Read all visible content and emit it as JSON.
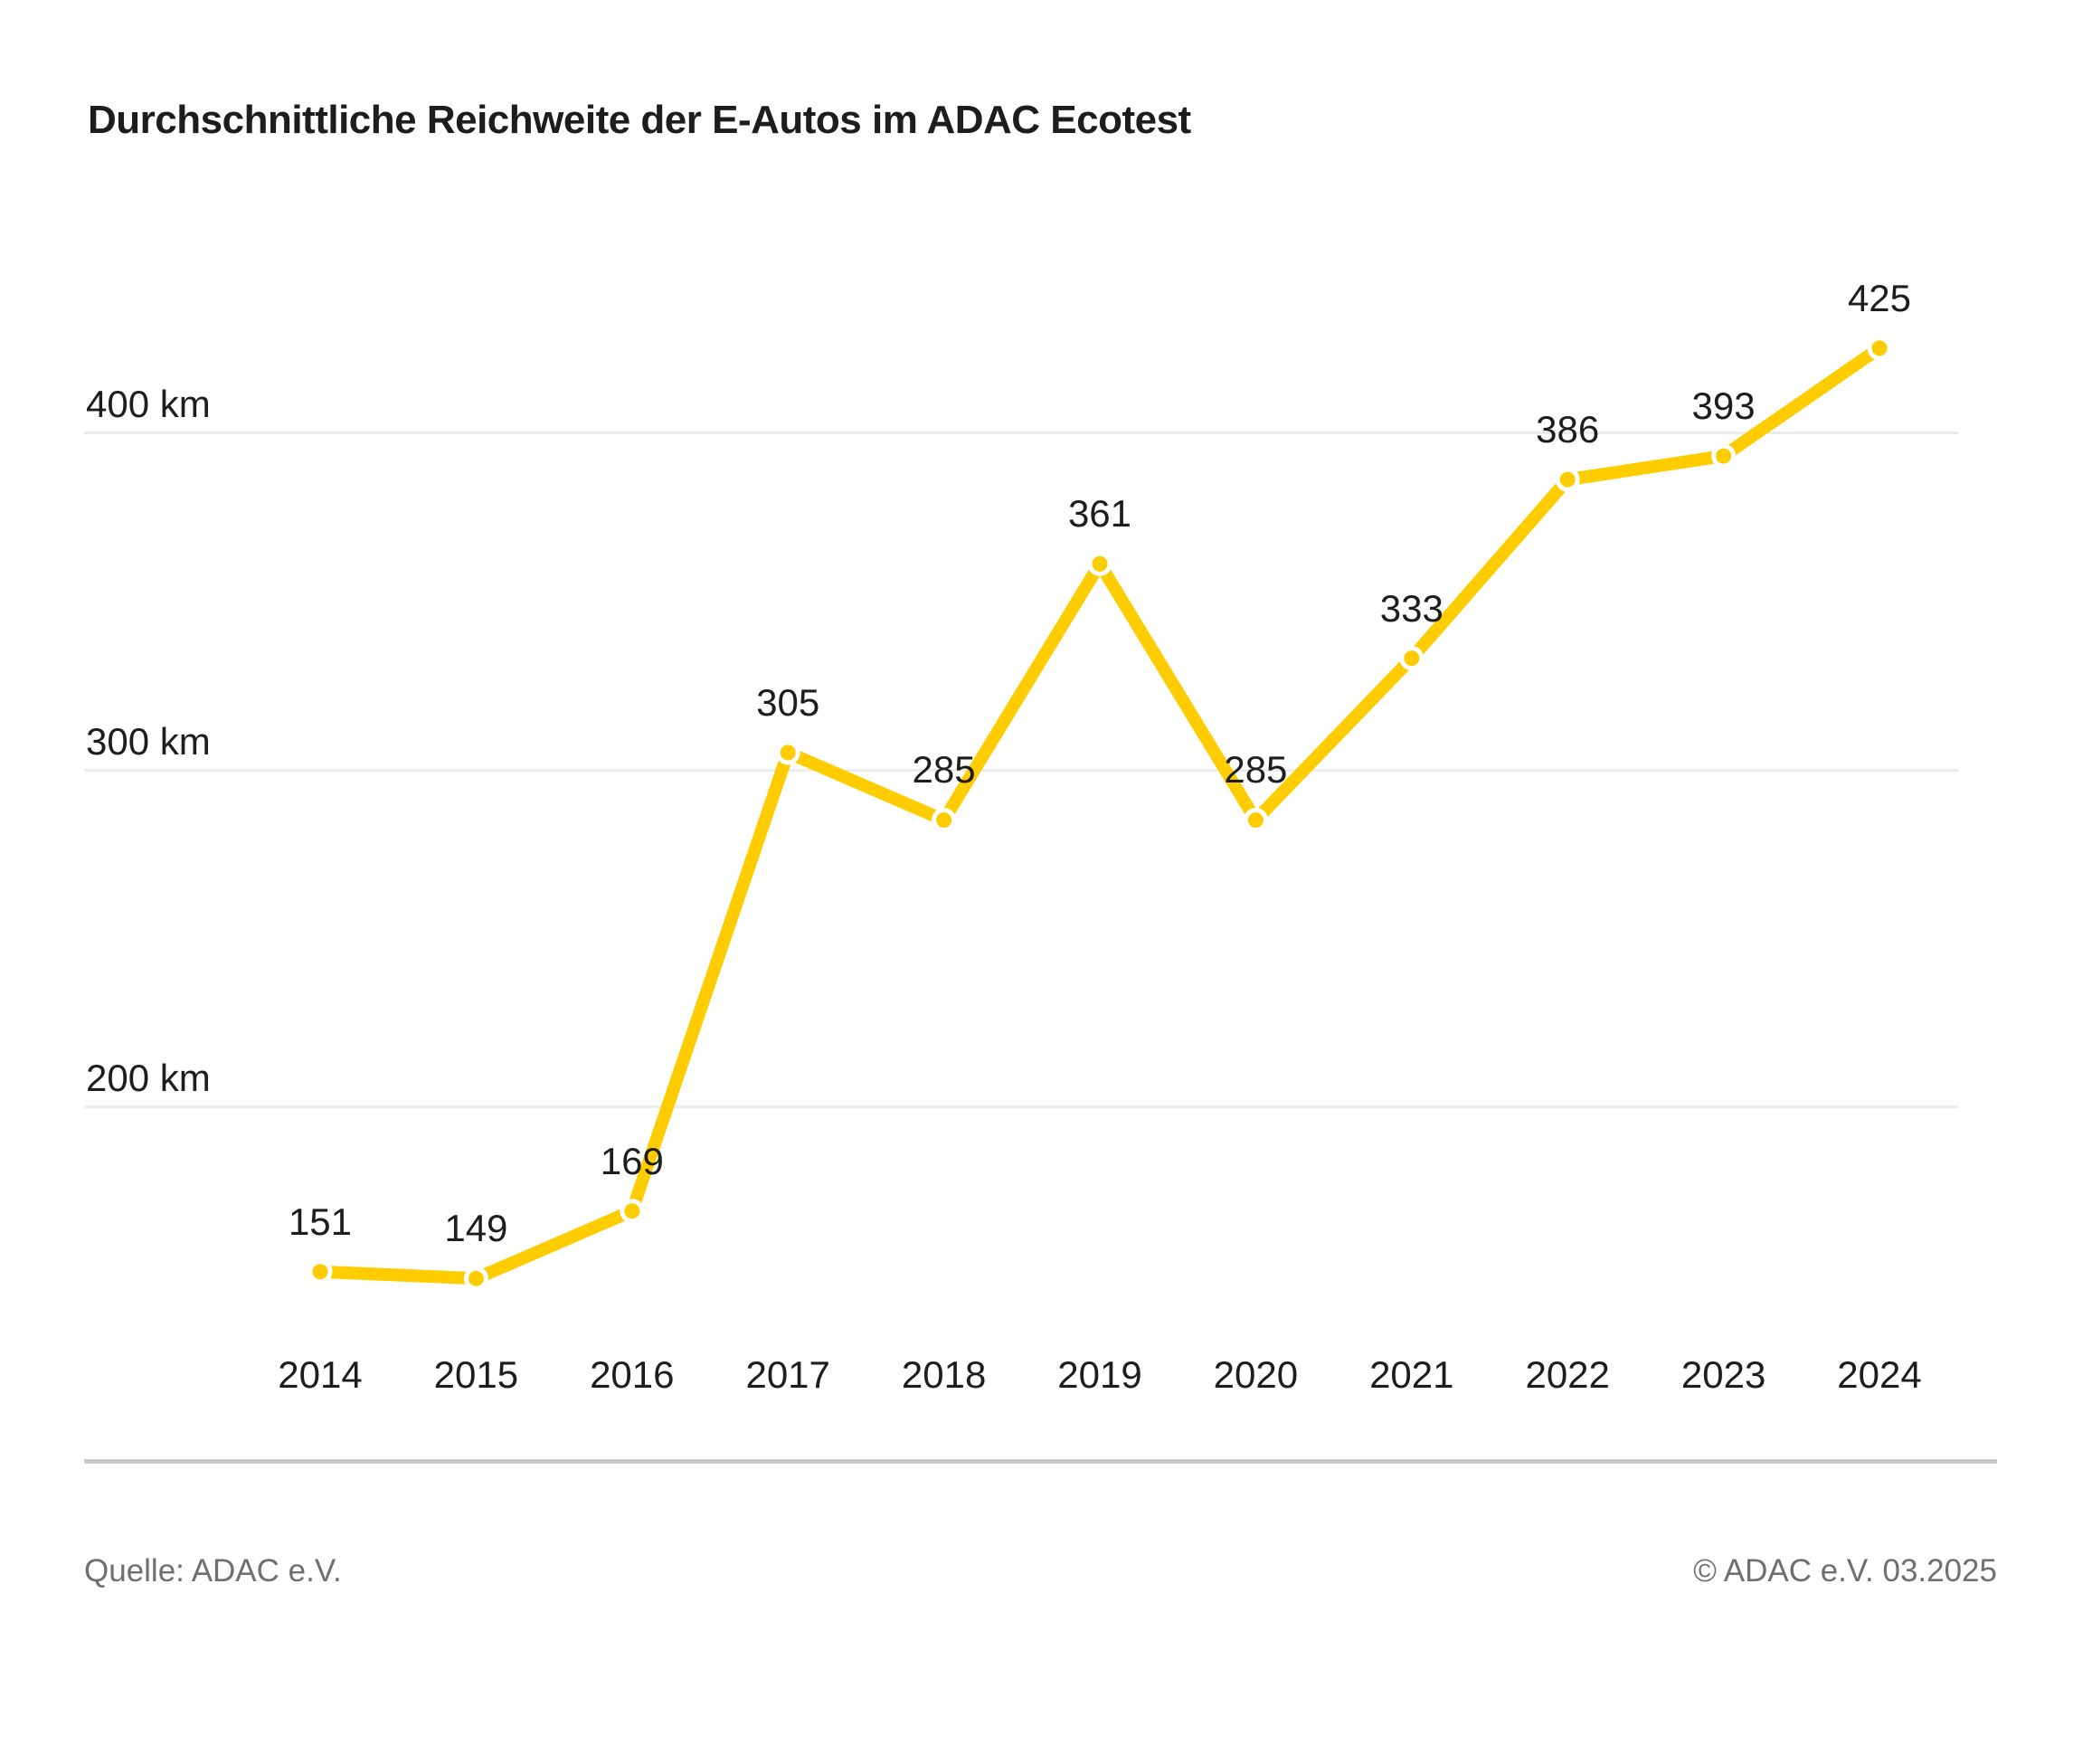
{
  "title": "Durchschnittliche Reichweite der E-Autos im ADAC Ecotest",
  "chart_data": {
    "type": "line",
    "title": "Durchschnittliche Reichweite der E-Autos im ADAC Ecotest",
    "categories": [
      "2014",
      "2015",
      "2016",
      "2017",
      "2018",
      "2019",
      "2020",
      "2021",
      "2022",
      "2023",
      "2024"
    ],
    "values": [
      151,
      149,
      169,
      305,
      285,
      361,
      285,
      333,
      386,
      393,
      425
    ],
    "series_name": "Durchschnittliche Reichweite",
    "unit": "km",
    "xlabel": "",
    "ylabel": "",
    "ylim": [
      100,
      450
    ],
    "yticks": [
      {
        "value": 400,
        "label": "400 km"
      },
      {
        "value": 300,
        "label": "300 km"
      },
      {
        "value": 200,
        "label": "200 km"
      }
    ],
    "grid": "horizontal",
    "legend": "none",
    "data_labels": true,
    "colors": {
      "line": "#FFCC00",
      "point_fill": "#FFCC00",
      "point_stroke": "#FFFFFF",
      "label_text": "#1D1D1B",
      "axis_text": "#1D1D1B",
      "gridline": "#ECECEC"
    }
  },
  "footer": {
    "source": "Quelle: ADAC e.V.",
    "copyright": "© ADAC e.V. 03.2025",
    "divider_color": "#C9C9C9",
    "text_color": "#706F6F"
  }
}
